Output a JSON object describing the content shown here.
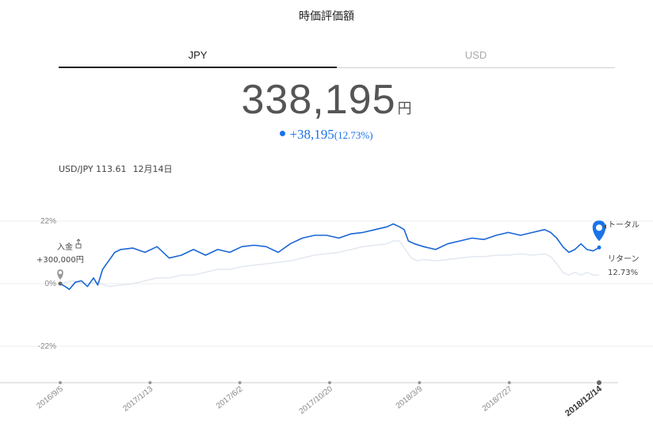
{
  "header": {
    "title": "時価評価額"
  },
  "tabs": [
    {
      "label": "JPY",
      "active": true
    },
    {
      "label": "USD",
      "active": false
    }
  ],
  "valuation": {
    "amount": "338,195",
    "unit": "円"
  },
  "change": {
    "amount": "+38,195",
    "percent": "(12.73%)",
    "color": "#1a73e8"
  },
  "fx": {
    "pair_rate": "USD/JPY 113.61",
    "date": "12月14日"
  },
  "chart_data": {
    "type": "line",
    "x_tick_labels": [
      "2016/9/5",
      "2017/1/13",
      "2017/6/2",
      "2017/10/20",
      "2018/3/9",
      "2018/7/27",
      "2018/12/14"
    ],
    "y_tick_labels": [
      "22%",
      "0%",
      "-22%"
    ],
    "y_ticks": [
      22,
      0,
      -22
    ],
    "ylim": [
      -35,
      27
    ],
    "series": [
      {
        "color": "#1a66d6",
        "points": [
          [
            0,
            0
          ],
          [
            0.8,
            -1
          ],
          [
            1.5,
            -2
          ],
          [
            2.5,
            0.5
          ],
          [
            3.5,
            1
          ],
          [
            4.5,
            -1
          ],
          [
            5.5,
            2
          ],
          [
            6.2,
            -0.5
          ],
          [
            7,
            5
          ],
          [
            8,
            8
          ],
          [
            9,
            11
          ],
          [
            10,
            12
          ],
          [
            12,
            12.5
          ],
          [
            14,
            11
          ],
          [
            16,
            13
          ],
          [
            18,
            9
          ],
          [
            20,
            10
          ],
          [
            22,
            12
          ],
          [
            24,
            10
          ],
          [
            26,
            12
          ],
          [
            28,
            11
          ],
          [
            30,
            13
          ],
          [
            32,
            13.5
          ],
          [
            34,
            13
          ],
          [
            36,
            11
          ],
          [
            38,
            14
          ],
          [
            40,
            16
          ],
          [
            42,
            17
          ],
          [
            44,
            17
          ],
          [
            46,
            16
          ],
          [
            48,
            17.5
          ],
          [
            50,
            18
          ],
          [
            52,
            19
          ],
          [
            54,
            20
          ],
          [
            55,
            21
          ],
          [
            56,
            20
          ],
          [
            56.8,
            19
          ],
          [
            57.5,
            15
          ],
          [
            58.5,
            14
          ],
          [
            60,
            13
          ],
          [
            62,
            12
          ],
          [
            64,
            14
          ],
          [
            66,
            15
          ],
          [
            68,
            16
          ],
          [
            70,
            15.5
          ],
          [
            72,
            17
          ],
          [
            74,
            18
          ],
          [
            76,
            17
          ],
          [
            78,
            18
          ],
          [
            80,
            19
          ],
          [
            81,
            18
          ],
          [
            82,
            16
          ],
          [
            83,
            13
          ],
          [
            84,
            11
          ],
          [
            85,
            12
          ],
          [
            86,
            14
          ],
          [
            87,
            12
          ],
          [
            88,
            11.5
          ],
          [
            89,
            12.7
          ]
        ]
      },
      {
        "color": "#e1e6f0",
        "points": [
          [
            0,
            0
          ],
          [
            2,
            1
          ],
          [
            4,
            0
          ],
          [
            6,
            0.5
          ],
          [
            8,
            -1
          ],
          [
            10,
            -0.5
          ],
          [
            12,
            0
          ],
          [
            14,
            1
          ],
          [
            16,
            2
          ],
          [
            18,
            2
          ],
          [
            20,
            3
          ],
          [
            22,
            3
          ],
          [
            24,
            4
          ],
          [
            26,
            5
          ],
          [
            28,
            5
          ],
          [
            30,
            6
          ],
          [
            32,
            6.5
          ],
          [
            34,
            7
          ],
          [
            36,
            7.5
          ],
          [
            38,
            8
          ],
          [
            40,
            9
          ],
          [
            42,
            10
          ],
          [
            44,
            10.5
          ],
          [
            46,
            11
          ],
          [
            48,
            12
          ],
          [
            50,
            13
          ],
          [
            52,
            13.5
          ],
          [
            54,
            14
          ],
          [
            55,
            15
          ],
          [
            56,
            15
          ],
          [
            57,
            12
          ],
          [
            58,
            9
          ],
          [
            59,
            8
          ],
          [
            60,
            8.5
          ],
          [
            62,
            8
          ],
          [
            64,
            8.5
          ],
          [
            66,
            9
          ],
          [
            68,
            9.5
          ],
          [
            70,
            9.5
          ],
          [
            72,
            10
          ],
          [
            74,
            10
          ],
          [
            76,
            10.5
          ],
          [
            78,
            10
          ],
          [
            80,
            10.5
          ],
          [
            81,
            9.5
          ],
          [
            82,
            7
          ],
          [
            83,
            4
          ],
          [
            84,
            3
          ],
          [
            85,
            4
          ],
          [
            86,
            3
          ],
          [
            87,
            4
          ],
          [
            88,
            3
          ],
          [
            89,
            3
          ]
        ]
      }
    ],
    "annotations": {
      "start_label_line1": "入金",
      "start_label_line2": "+300,000円",
      "end_label_line1": "トータル",
      "end_label_line2": "リターン",
      "end_label_line3": "12.73%"
    },
    "marker_color": "#1a73e8",
    "grid": true
  }
}
